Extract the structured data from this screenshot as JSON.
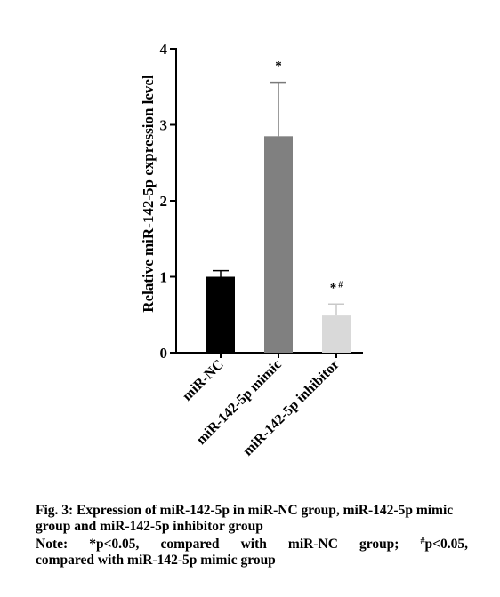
{
  "chart_data": {
    "type": "bar",
    "ylabel": "Relative miR-142-5p expression level",
    "ylim": [
      0,
      4
    ],
    "yticks": [
      "0",
      "1",
      "2",
      "3",
      "4"
    ],
    "categories": [
      "miR-NC",
      "miR-142-5p mimic",
      "miR-142-5p inhibitor"
    ],
    "values": [
      1.0,
      2.85,
      0.49
    ],
    "errors": [
      0.08,
      0.71,
      0.15
    ],
    "colors": [
      "#000000",
      "#808080",
      "#d9d9d9"
    ],
    "annotations": [
      "",
      "*",
      "*#"
    ]
  },
  "caption": {
    "title": "Fig. 3: Expression of miR-142-5p in miR-NC group, miR-142-5p mimic group and miR-142-5p inhibitor group",
    "note_line1_prefix": "Note: *p<0.05, compared with miR-NC group; ",
    "note_sup": "#",
    "note_line1_suffix": "p<0.05,",
    "note_line2": "compared with miR-142-5p mimic group"
  }
}
